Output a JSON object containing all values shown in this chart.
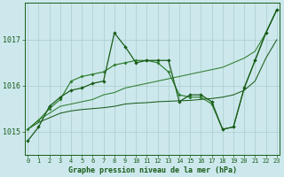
{
  "title": "Graphe pression niveau de la mer (hPa)",
  "hours": [
    0,
    1,
    2,
    3,
    4,
    5,
    6,
    7,
    8,
    9,
    10,
    11,
    12,
    13,
    14,
    15,
    16,
    17,
    18,
    19,
    20,
    21,
    22,
    23
  ],
  "ylim": [
    1014.5,
    1017.8
  ],
  "yticks": [
    1015,
    1016,
    1017
  ],
  "background_color": "#cce8ec",
  "grid_color": "#aacccc",
  "dark_green": "#1a5c1a",
  "mid_green": "#2e7d2e",
  "series": {
    "line_zigzag": [
      1014.8,
      1015.1,
      1015.55,
      1015.75,
      1015.9,
      1015.95,
      1016.05,
      1016.1,
      1017.15,
      1016.85,
      1016.5,
      1016.55,
      1016.55,
      1016.55,
      1015.65,
      1015.8,
      1015.8,
      1015.65,
      1015.05,
      1015.1,
      1015.95,
      1016.55,
      1017.15,
      1017.65
    ],
    "line_smooth": [
      1015.05,
      1015.25,
      1015.5,
      1015.7,
      1016.1,
      1016.2,
      1016.25,
      1016.3,
      1016.45,
      1016.5,
      1016.55,
      1016.55,
      1016.5,
      1016.3,
      1015.8,
      1015.75,
      1015.75,
      1015.6,
      1015.05,
      1015.1,
      1015.95,
      1016.55,
      1017.15,
      1017.65
    ],
    "line_trend1": [
      1015.05,
      1015.25,
      1015.4,
      1015.55,
      1015.6,
      1015.65,
      1015.7,
      1015.8,
      1015.85,
      1015.95,
      1016.0,
      1016.05,
      1016.1,
      1016.15,
      1016.2,
      1016.25,
      1016.3,
      1016.35,
      1016.4,
      1016.5,
      1016.6,
      1016.75,
      1017.15,
      1017.65
    ],
    "line_trend2": [
      1015.05,
      1015.2,
      1015.3,
      1015.4,
      1015.45,
      1015.48,
      1015.5,
      1015.52,
      1015.55,
      1015.6,
      1015.62,
      1015.63,
      1015.65,
      1015.66,
      1015.67,
      1015.68,
      1015.7,
      1015.72,
      1015.75,
      1015.8,
      1015.9,
      1016.1,
      1016.6,
      1017.0
    ]
  }
}
